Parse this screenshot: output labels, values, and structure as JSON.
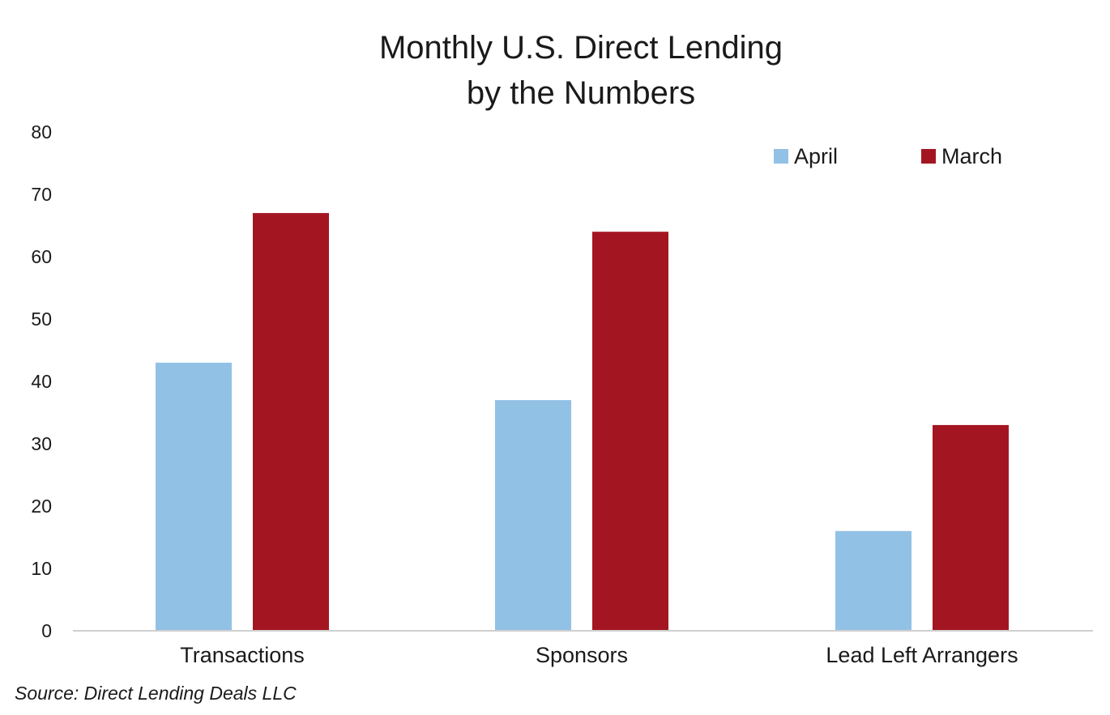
{
  "chart_data": {
    "type": "bar",
    "title": [
      "Monthly U.S. Direct Lending",
      "by the Numbers"
    ],
    "categories": [
      "Transactions",
      "Sponsors",
      "Lead Left Arrangers"
    ],
    "series": [
      {
        "name": "April",
        "color": "#92C1E6",
        "values": [
          43,
          37,
          16
        ]
      },
      {
        "name": "March",
        "color": "#A31621",
        "values": [
          67,
          64,
          33
        ]
      }
    ],
    "xlabel": "",
    "ylabel": "",
    "ylim": [
      0,
      80
    ],
    "yticks": [
      0,
      10,
      20,
      30,
      40,
      50,
      60,
      70,
      80
    ],
    "grid": false,
    "legend_position": "top-right"
  },
  "source": "Source: Direct Lending Deals LLC"
}
